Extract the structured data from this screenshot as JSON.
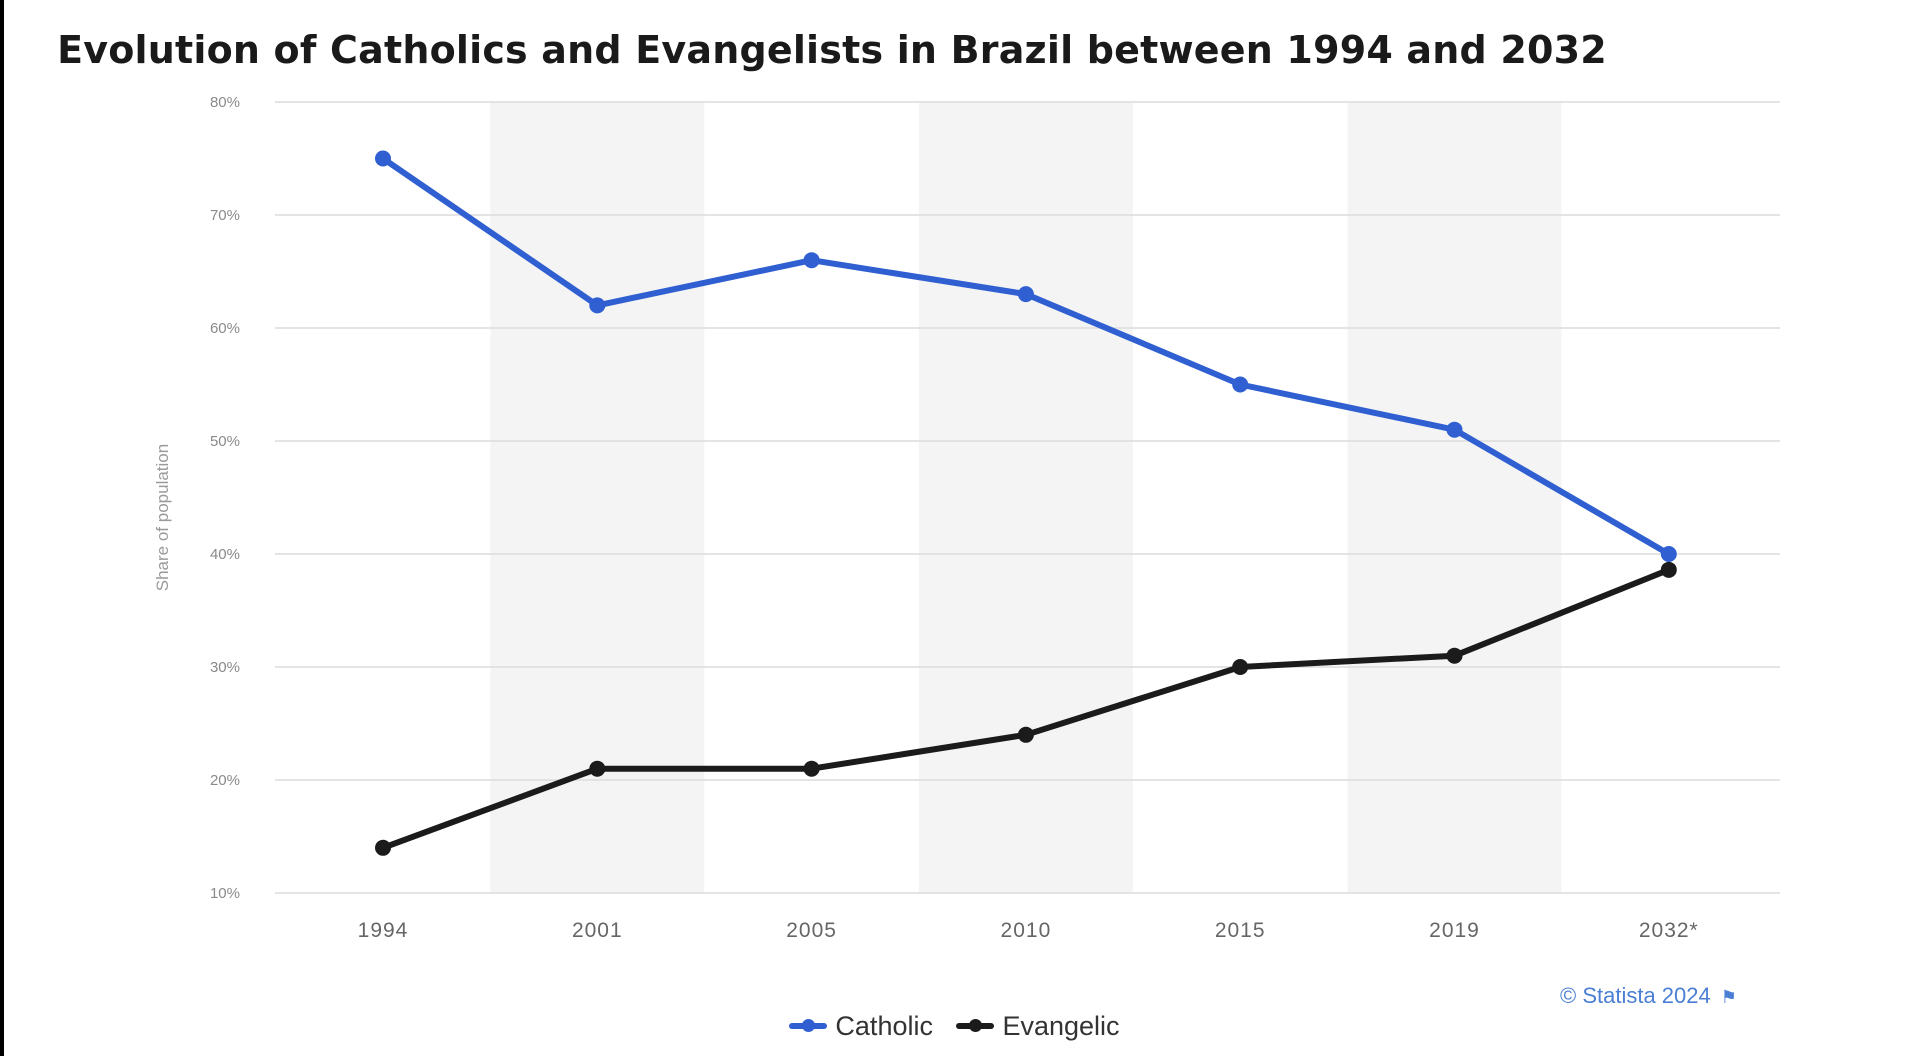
{
  "chart_data": {
    "type": "line",
    "title": "Evolution of Catholics and Evangelists in Brazil between 1994 and 2032",
    "ylabel": "Share of population",
    "xlabel": "",
    "categories": [
      "1994",
      "2001",
      "2005",
      "2010",
      "2015",
      "2019",
      "2032*"
    ],
    "y_ticks": [
      "80%",
      "70%",
      "60%",
      "50%",
      "40%",
      "30%",
      "20%",
      "10%"
    ],
    "ylim": [
      10,
      80
    ],
    "grid": "horizontal",
    "legend_position": "bottom",
    "series": [
      {
        "name": "Catholic",
        "color": "#2f5fd1",
        "values": [
          75,
          62,
          66,
          63,
          55,
          51,
          40
        ]
      },
      {
        "name": "Evangelic",
        "color": "#1b1b1b",
        "values": [
          14,
          21,
          21,
          24,
          30,
          31,
          38.6
        ]
      }
    ]
  },
  "credit": "© Statista 2024",
  "credit_icon": "flag-icon"
}
